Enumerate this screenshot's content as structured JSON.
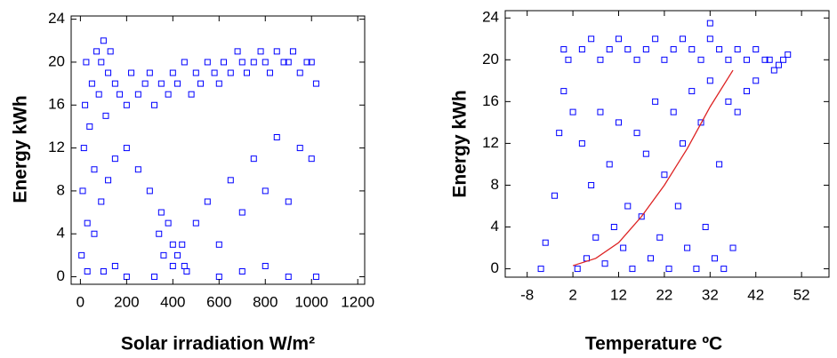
{
  "chart_data": [
    {
      "type": "scatter",
      "xlabel": "Solar irradiation W/m²",
      "ylabel": "Energy kWh",
      "xlim": [
        -40,
        1230
      ],
      "ylim": [
        -0.7,
        24.3
      ],
      "xticks": [
        0,
        200,
        400,
        600,
        800,
        1000,
        1200
      ],
      "yticks": [
        0,
        4,
        8,
        12,
        16,
        20,
        24
      ],
      "series": [
        {
          "type": "scatter",
          "color": "#0000ff",
          "x": [
            5,
            10,
            15,
            20,
            25,
            30,
            40,
            50,
            60,
            70,
            80,
            90,
            100,
            110,
            120,
            130,
            150,
            170,
            200,
            220,
            250,
            280,
            300,
            320,
            350,
            380,
            400,
            420,
            450,
            480,
            500,
            520,
            550,
            580,
            600,
            620,
            650,
            680,
            700,
            720,
            750,
            780,
            800,
            820,
            850,
            880,
            900,
            920,
            950,
            980,
            1000,
            1020,
            30,
            60,
            90,
            120,
            150,
            200,
            250,
            300,
            350,
            400,
            450,
            500,
            550,
            600,
            650,
            700,
            750,
            800,
            850,
            900,
            950,
            1000,
            320,
            360,
            400,
            440,
            460,
            340,
            380,
            420,
            100,
            150,
            200,
            600,
            700,
            800,
            900,
            1020
          ],
          "values": [
            2,
            8,
            12,
            16,
            20,
            5,
            14,
            18,
            10,
            21,
            17,
            20,
            22,
            15,
            19,
            21,
            18,
            17,
            16,
            19,
            17,
            18,
            19,
            16,
            18,
            17,
            19,
            18,
            20,
            17,
            19,
            18,
            20,
            19,
            18,
            20,
            19,
            21,
            20,
            19,
            20,
            21,
            20,
            19,
            21,
            20,
            20,
            21,
            19,
            20,
            20,
            18,
            0.5,
            4,
            7,
            9,
            11,
            12,
            10,
            8,
            6,
            3,
            1,
            5,
            7,
            3,
            9,
            6,
            11,
            8,
            13,
            7,
            12,
            11,
            0,
            2,
            1,
            3,
            0.5,
            4,
            5,
            2,
            0.5,
            1,
            0,
            0,
            0.5,
            1,
            0,
            0
          ]
        }
      ]
    },
    {
      "type": "scatter",
      "xlabel": "Temperature ºC",
      "ylabel": "Energy kWh",
      "xlim": [
        -12.8,
        58
      ],
      "ylim": [
        -0.8,
        24.7
      ],
      "xticks": [
        -8,
        2,
        12,
        22,
        32,
        42,
        52
      ],
      "yticks": [
        0,
        4,
        8,
        12,
        16,
        20,
        24
      ],
      "series": [
        {
          "type": "scatter",
          "color": "#0000ff",
          "x": [
            -5,
            -4,
            -2,
            -1,
            0,
            0,
            1,
            2,
            4,
            6,
            8,
            10,
            12,
            14,
            16,
            18,
            20,
            22,
            24,
            26,
            28,
            30,
            32,
            34,
            36,
            38,
            40,
            42,
            44,
            46,
            48,
            4,
            6,
            8,
            10,
            12,
            14,
            16,
            18,
            20,
            22,
            24,
            26,
            28,
            30,
            32,
            34,
            36,
            38,
            40,
            42,
            3,
            5,
            7,
            9,
            11,
            13,
            15,
            17,
            19,
            21,
            23,
            25,
            27,
            29,
            31,
            33,
            35,
            37,
            32,
            45,
            47,
            49
          ],
          "values": [
            0,
            2.5,
            7,
            13,
            17,
            21,
            20,
            15,
            21,
            22,
            20,
            21,
            22,
            21,
            20,
            21,
            22,
            20,
            21,
            22,
            21,
            20,
            22,
            21,
            20,
            21,
            20,
            21,
            20,
            19,
            20,
            12,
            8,
            15,
            10,
            14,
            6,
            13,
            11,
            16,
            9,
            15,
            12,
            17,
            14,
            18,
            10,
            16,
            15,
            17,
            18,
            0,
            1,
            3,
            0.5,
            4,
            2,
            0,
            5,
            1,
            3,
            0,
            6,
            2,
            0,
            4,
            1,
            0,
            2,
            23.5,
            20,
            19.5,
            20.5
          ]
        },
        {
          "type": "line",
          "color": "#dd2222",
          "x": [
            2,
            7,
            12,
            17,
            22,
            27,
            32,
            37
          ],
          "values": [
            0.3,
            1,
            2.5,
            5,
            8,
            11.5,
            15.5,
            19
          ]
        }
      ]
    }
  ]
}
